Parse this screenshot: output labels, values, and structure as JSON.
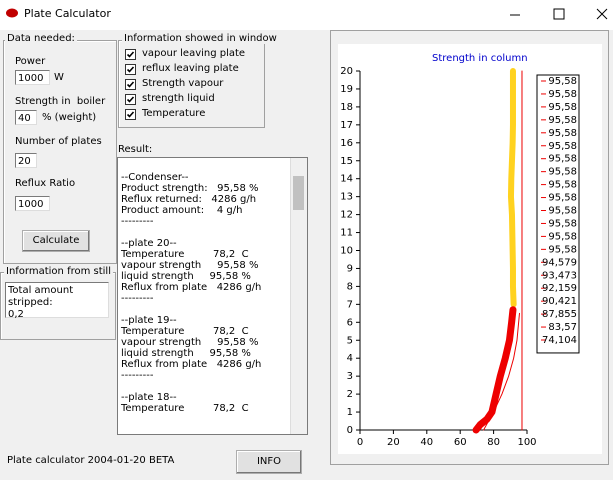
{
  "window": {
    "title": "Plate Calculator"
  },
  "data_needed": {
    "title": "Data needed:",
    "power_label": "Power",
    "power": 1000,
    "power_unit": "W",
    "strength_label": "Strength in  boiler",
    "strength": 40,
    "strength_unit": "% (weight)",
    "plates_label": "Number of plates",
    "plates": 20,
    "reflux_label": "Reflux Ratio",
    "reflux": 1000,
    "calculate": "Calculate"
  },
  "info_window": {
    "title": "Information showed in window",
    "options": [
      "vapour leaving plate",
      "reflux leaving plate",
      "Strength vapour",
      "strength liquid",
      "Temperature"
    ]
  },
  "result": {
    "label": "Result:",
    "blocks": [
      [
        "--Condenser--",
        "Product strength:   95,58 %",
        "Reflux returned:   4286 g/h",
        "Product amount:    4 g/h",
        "---------"
      ],
      [
        "--plate 20--",
        "Temperature         78,2  C",
        "vapour strength     95,58 %",
        "liquid strength     95,58 %",
        "Reflux from plate   4286 g/h",
        "---------"
      ],
      [
        "--plate 19--",
        "Temperature         78,2  C",
        "vapour strength     95,58 %",
        "liquid strength     95,58 %",
        "Reflux from plate   4286 g/h",
        "---------"
      ],
      [
        "--plate 18--",
        "Temperature         78,2  C"
      ]
    ]
  },
  "still": {
    "title": "Information from still",
    "lines": [
      "Total amount stripped:",
      "0,2"
    ]
  },
  "footer": {
    "status": "Plate calculator 2004-01-20 BETA",
    "info_button": "INFO"
  },
  "chart_data": {
    "type": "line",
    "title": "Strength in column",
    "xlim": [
      0,
      100
    ],
    "xticks": [
      0,
      20,
      40,
      60,
      80,
      100
    ],
    "ylim": [
      0,
      20
    ],
    "yticks": [
      0,
      1,
      2,
      3,
      4,
      5,
      6,
      7,
      8,
      9,
      10,
      11,
      12,
      13,
      14,
      15,
      16,
      17,
      18,
      19,
      20
    ],
    "grid": false,
    "series": [
      {
        "color": "#ffd21f",
        "width": 6,
        "x": [
          92,
          91.6,
          91.6,
          91.4,
          91.2,
          91,
          90.4,
          90.6,
          91,
          91.4,
          91.6,
          91.6,
          91.6,
          91.6
        ],
        "y": [
          7,
          8,
          9,
          10,
          11,
          12,
          13,
          14,
          15,
          16,
          17,
          18,
          19,
          20
        ]
      },
      {
        "color": "#ee0000",
        "width": 7,
        "x": [
          69.5,
          72,
          76,
          79,
          81.5,
          84,
          87,
          89.5,
          90.8,
          91.6
        ],
        "y": [
          0,
          0.3,
          0.6,
          1,
          2,
          3,
          4,
          5,
          6,
          6.7
        ]
      },
      {
        "color": "#ee0000",
        "width": 1,
        "x": [
          97,
          97
        ],
        "y": [
          0,
          20
        ]
      },
      {
        "color": "#ee0000",
        "width": 1,
        "x": [
          74,
          80,
          85,
          89,
          92,
          94,
          95.5
        ],
        "y": [
          0,
          1,
          2,
          3,
          4,
          5,
          6.5
        ]
      }
    ],
    "legend": {
      "color": "#ee0000",
      "entries": [
        "95,58",
        "95,58",
        "95,58",
        "95,58",
        "95,58",
        "95,58",
        "95,58",
        "95,58",
        "95,58",
        "95,58",
        "95,58",
        "95,58",
        "95,58",
        "95,58",
        "94,579",
        "93,473",
        "92,159",
        "90,421",
        "87,855",
        "83,57",
        "74,104"
      ]
    }
  }
}
